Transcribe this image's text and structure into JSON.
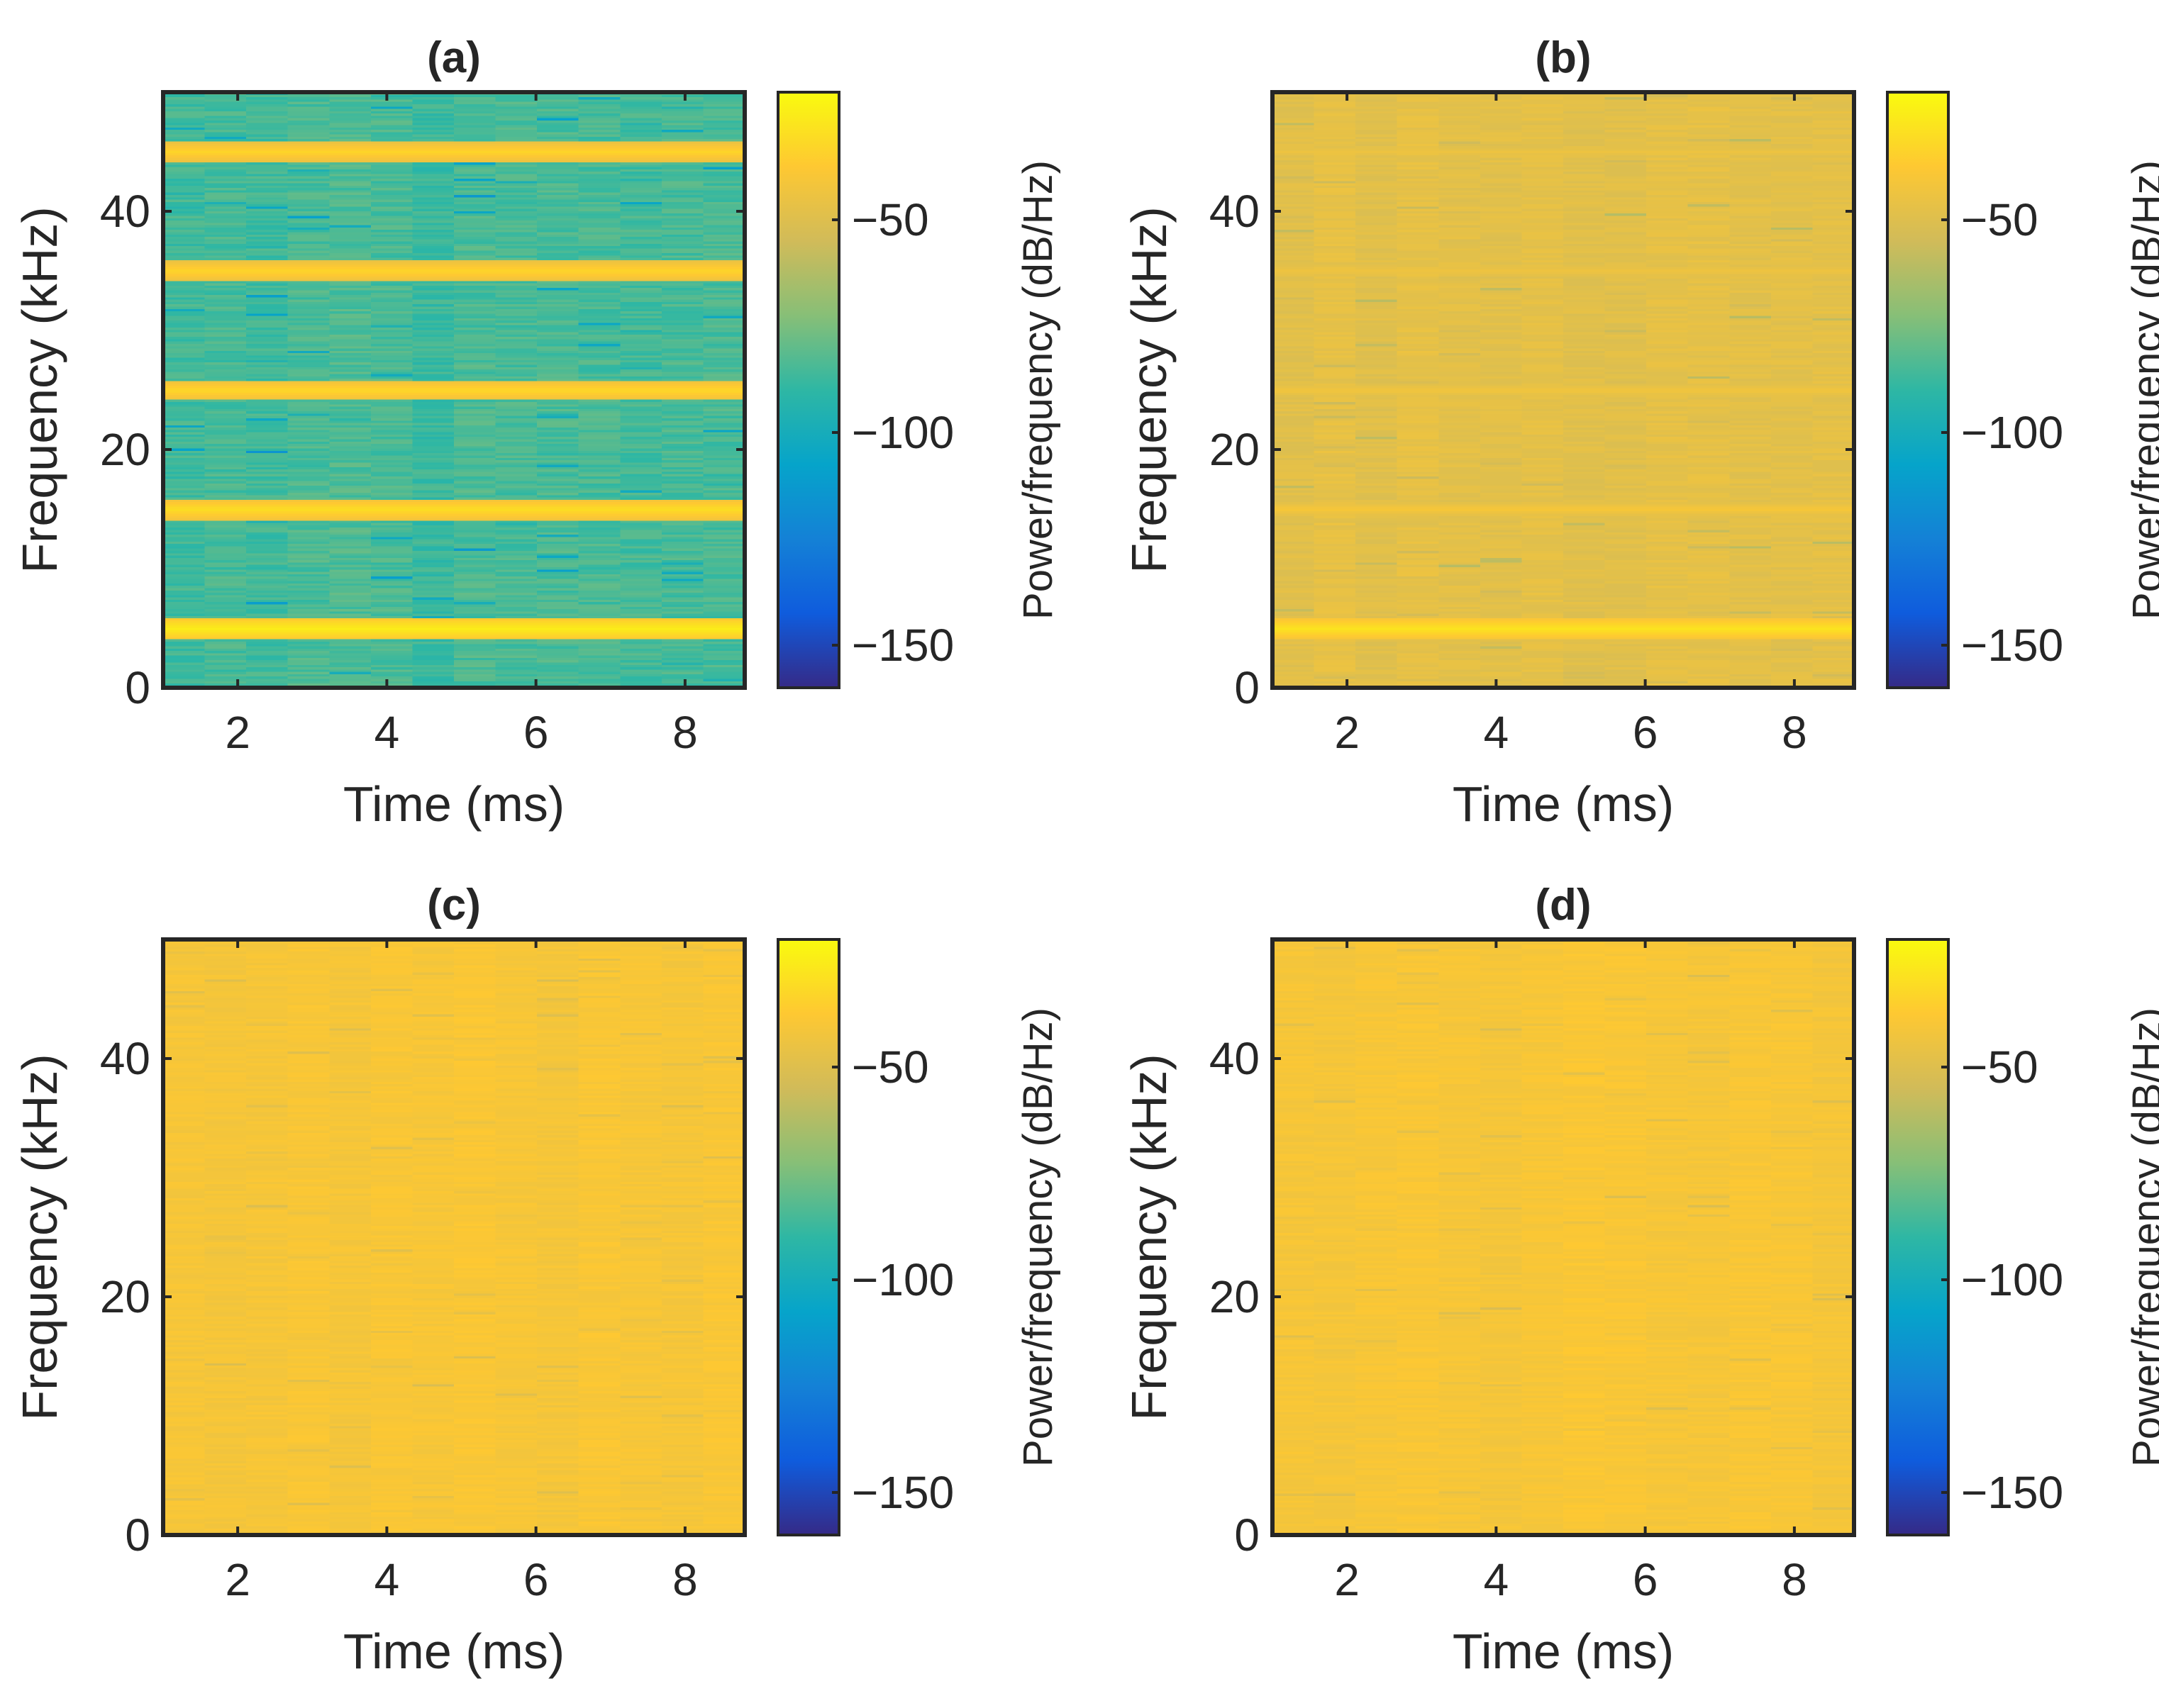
{
  "chart_data": [
    {
      "type": "heatmap",
      "panel": "a",
      "title": "(a)",
      "xlabel": "Time (ms)",
      "ylabel": "Frequency (kHz)",
      "colorbar_label": "Power/frequency (dB/Hz)",
      "xlim": [
        1.0,
        8.8
      ],
      "ylim": [
        0,
        50
      ],
      "xticks": [
        2,
        4,
        6,
        8
      ],
      "yticks": [
        0,
        20,
        40
      ],
      "colorbar_range": [
        -160,
        -20
      ],
      "colorbar_ticks": [
        -50,
        -100,
        -150
      ],
      "time_segments": 14,
      "frequency_bins": 256,
      "background_level_db": -85,
      "background_variation_db": 10,
      "tone_frequencies_khz": [
        5,
        15,
        25,
        35,
        45
      ],
      "tone_levels_db": [
        -25,
        -30,
        -32,
        -33,
        -33
      ],
      "noise_seed": 11
    },
    {
      "type": "heatmap",
      "panel": "b",
      "title": "(b)",
      "xlabel": "Time (ms)",
      "ylabel": "Frequency (kHz)",
      "colorbar_label": "Power/frequency (dB/Hz)",
      "xlim": [
        1.0,
        8.8
      ],
      "ylim": [
        0,
        50
      ],
      "xticks": [
        2,
        4,
        6,
        8
      ],
      "yticks": [
        0,
        20,
        40
      ],
      "colorbar_range": [
        -160,
        -20
      ],
      "colorbar_ticks": [
        -50,
        -100,
        -150
      ],
      "time_segments": 14,
      "frequency_bins": 256,
      "background_level_db": -48,
      "background_variation_db": 5,
      "tone_frequencies_khz": [
        5,
        15,
        25,
        35,
        45
      ],
      "tone_levels_db": [
        -28,
        -40,
        -42,
        -43,
        -44
      ],
      "noise_seed": 23
    },
    {
      "type": "heatmap",
      "panel": "c",
      "title": "(c)",
      "xlabel": "Time (ms)",
      "ylabel": "Frequency (kHz)",
      "colorbar_label": "Power/frequency (dB/Hz)",
      "xlim": [
        1.0,
        8.8
      ],
      "ylim": [
        0,
        50
      ],
      "xticks": [
        2,
        4,
        6,
        8
      ],
      "yticks": [
        0,
        20,
        40
      ],
      "colorbar_range": [
        -160,
        -20
      ],
      "colorbar_ticks": [
        -50,
        -100,
        -150
      ],
      "time_segments": 14,
      "frequency_bins": 256,
      "background_level_db": -40,
      "background_variation_db": 4,
      "tone_frequencies_khz": [],
      "tone_levels_db": [],
      "noise_seed": 37
    },
    {
      "type": "heatmap",
      "panel": "d",
      "title": "(d)",
      "xlabel": "Time (ms)",
      "ylabel": "Frequency (kHz)",
      "colorbar_label": "Power/frequency (dB/Hz)",
      "xlim": [
        1.0,
        8.8
      ],
      "ylim": [
        0,
        50
      ],
      "xticks": [
        2,
        4,
        6,
        8
      ],
      "yticks": [
        0,
        20,
        40
      ],
      "colorbar_range": [
        -160,
        -20
      ],
      "colorbar_ticks": [
        -50,
        -100,
        -150
      ],
      "time_segments": 14,
      "frequency_bins": 256,
      "background_level_db": -40,
      "background_variation_db": 4,
      "tone_frequencies_khz": [],
      "tone_levels_db": [],
      "noise_seed": 53
    }
  ]
}
